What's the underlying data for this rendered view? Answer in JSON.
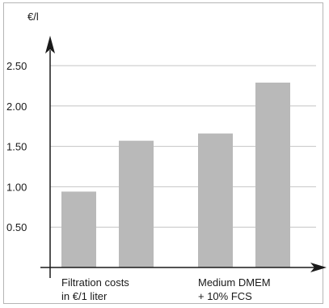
{
  "chart_data": {
    "type": "bar",
    "ylabel": "€/l",
    "ylim": [
      0,
      3.0
    ],
    "y_ticks": [
      "0.50",
      "1.00",
      "1.50",
      "2.00",
      "2.50"
    ],
    "y_tick_values": [
      0.5,
      1.0,
      1.5,
      2.0,
      2.5
    ],
    "groups": [
      {
        "label_lines": [
          "Filtration costs",
          "in €/1 liter"
        ],
        "values": [
          0.94,
          1.57
        ]
      },
      {
        "label_lines": [
          "Medium DMEM",
          "+ 10% FCS"
        ],
        "values": [
          1.66,
          2.29
        ]
      }
    ],
    "grid": true,
    "bar_color": "#b9b9b9",
    "grid_color": "#c4c4c4",
    "axis_color": "#1a1a1a"
  }
}
